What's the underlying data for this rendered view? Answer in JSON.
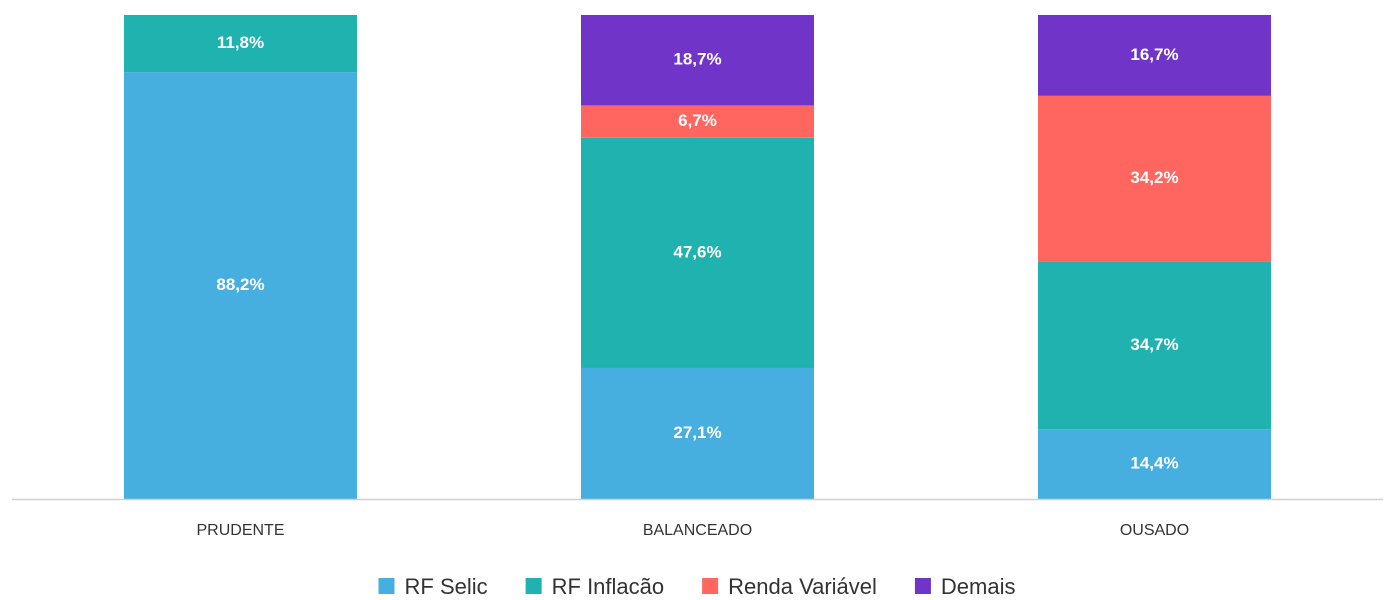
{
  "chart_data": {
    "type": "stacked_bar_percent",
    "categories": [
      "PRUDENTE",
      "BALANCEADO",
      "OUSADO"
    ],
    "series": [
      {
        "name": "RF Selic",
        "color": "#47afdf",
        "values": [
          88.2,
          27.1,
          14.4
        ],
        "value_labels": [
          "88,2%",
          "27,1%",
          "14,4%"
        ]
      },
      {
        "name": "RF Inflacão",
        "color": "#1fb2ae",
        "values": [
          11.8,
          47.6,
          34.7
        ],
        "value_labels": [
          "11,8%",
          "47,6%",
          "34,7%"
        ]
      },
      {
        "name": "Renda Variável",
        "color": "#ff6660",
        "values": [
          null,
          6.7,
          34.2
        ],
        "value_labels": [
          null,
          "6,7%",
          "34,2%"
        ]
      },
      {
        "name": "Demais",
        "color": "#7035c8",
        "values": [
          null,
          18.7,
          16.7
        ],
        "value_labels": [
          null,
          "18,7%",
          "16,7%"
        ]
      }
    ],
    "legend": "bottom"
  }
}
